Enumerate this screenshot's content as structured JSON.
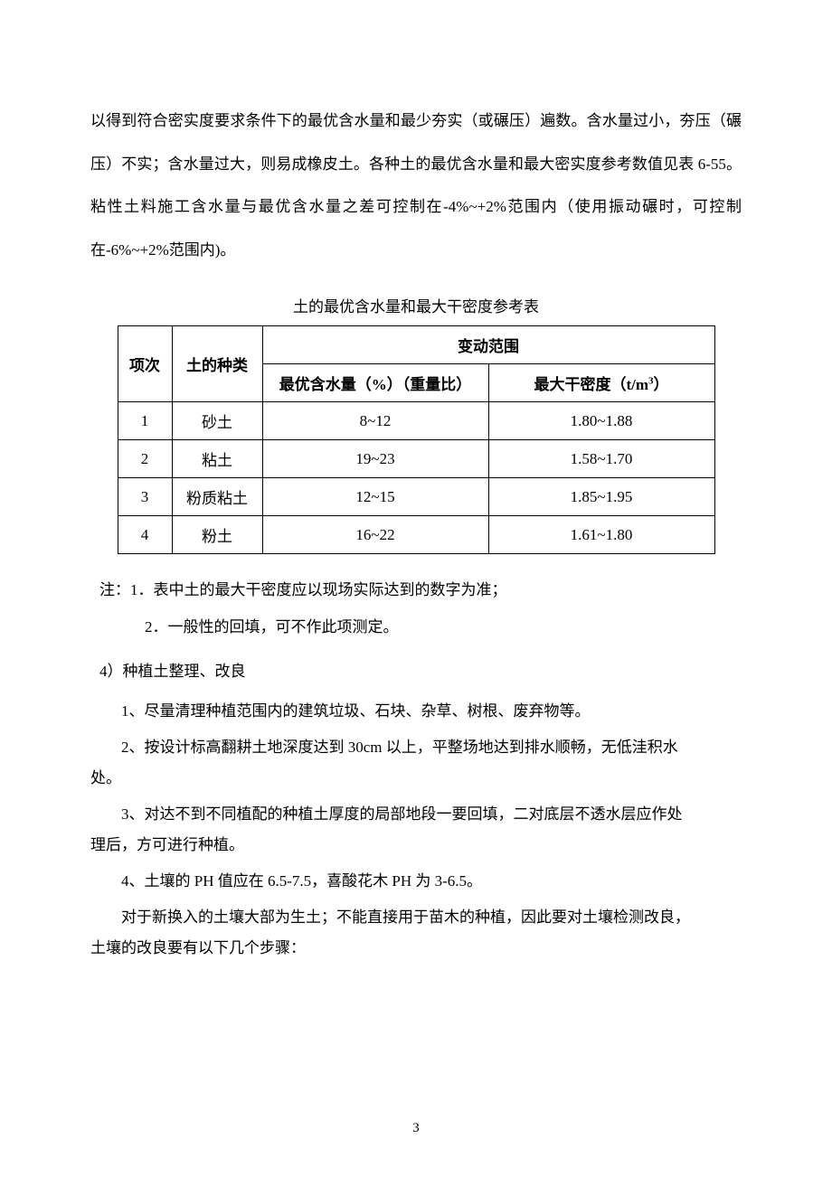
{
  "paragraph1": "以得到符合密实度要求条件下的最优含水量和最少夯实（或碾压）遍数。含水量过小，夯压（碾压）不实；含水量过大，则易成橡皮土。各种土的最优含水量和最大密实度参考数值见表 6-55。粘性土料施工含水量与最优含水量之差可控制在-4%~+2%范围内（使用振动碾时，可控制在-6%~+2%范围内)。",
  "table": {
    "title": "土的最优含水量和最大干密度参考表",
    "header_idx": "项次",
    "header_type": "土的种类",
    "header_range": "变动范围",
    "header_water": "最优含水量（%）（重量比）",
    "header_density_prefix": "最大干密度（t/m",
    "header_density_suffix": "）",
    "rows": [
      {
        "idx": "1",
        "type": "砂土",
        "water": "8~12",
        "density": "1.80~1.88"
      },
      {
        "idx": "2",
        "type": "粘土",
        "water": "19~23",
        "density": "1.58~1.70"
      },
      {
        "idx": "3",
        "type": "粉质粘土",
        "water": "12~15",
        "density": "1.85~1.95"
      },
      {
        "idx": "4",
        "type": "粉土",
        "water": "16~22",
        "density": "1.61~1.80"
      }
    ]
  },
  "note1": "注：1．表中土的最大干密度应以现场实际达到的数字为准；",
  "note2": "2．一般性的回填，可不作此项测定。",
  "section4": "4）种植土整理、改良",
  "item1": "1、尽量清理种植范围内的建筑垃圾、石块、杂草、树根、废弃物等。",
  "item2a": "2、按设计标高翻耕土地深度达到 30cm 以上，平整场地达到排水顺畅，无低洼积水",
  "item2b": "处。",
  "item3a": "3、对达不到不同植配的种植土厚度的局部地段一要回填，二对底层不透水层应作处",
  "item3b": "理后，方可进行种植。",
  "item4": "4、土壤的 PH 值应在 6.5-7.5，喜酸花木 PH 为 3-6.5。",
  "closing1": "对于新换入的土壤大部为生土；不能直接用于苗木的种植，因此要对土壤检测改良，",
  "closing2": "土壤的改良要有以下几个步骤：",
  "pageNumber": "3"
}
